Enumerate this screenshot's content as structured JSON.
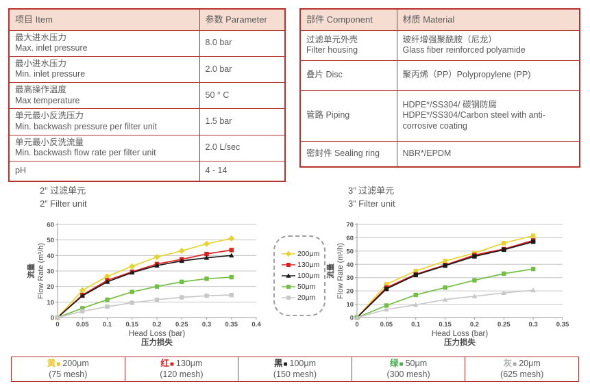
{
  "tables": {
    "specs": {
      "headers": [
        "项目 Item",
        "参数 Parameter"
      ],
      "rows": [
        {
          "item_zh": "最大进水压力",
          "item_en": "Max. inlet pressure",
          "value": "8.0 bar"
        },
        {
          "item_zh": "最小进水压力",
          "item_en": "Min. inlet pressure",
          "value": "2.0 bar"
        },
        {
          "item_zh": "最高操作温度",
          "item_en": "Max temperature",
          "value": "50 ° C"
        },
        {
          "item_zh": "单元最小反洗压力",
          "item_en": "Min. backwash pressure per filter unit",
          "value": "1.5 bar"
        },
        {
          "item_zh": "单元最小反洗流量",
          "item_en": "Min. backwash flow rate per filter unit",
          "value": "2.0 L/sec"
        },
        {
          "item_zh": "pH",
          "item_en": "",
          "value": "4 - 14"
        }
      ]
    },
    "materials": {
      "headers": [
        "部件 Component",
        "材质 Material"
      ],
      "rows": [
        {
          "component_zh": "过滤单元外壳",
          "component_en": "Filter housing",
          "material_zh": "玻纤增强聚酰胺（尼龙）",
          "material_en": "Glass fiber reinforced polyamide"
        },
        {
          "component_zh": "叠片 Disc",
          "component_en": "",
          "material_zh": "聚丙烯（PP）Polypropylene (PP)",
          "material_en": ""
        },
        {
          "component_zh": "管路 Piping",
          "component_en": "",
          "material_zh": "HDPE*/SS304/ 碳钢防腐",
          "material_en": "HDPE*/SS304/Carbon steel with anti-corrosive coating"
        },
        {
          "component_zh": "密封件 Sealing ring",
          "component_en": "",
          "material_zh": "NBR*/EPDM",
          "material_en": ""
        }
      ]
    }
  },
  "chart_data": [
    {
      "type": "line",
      "title_zh": "2” 过滤单元",
      "title_en": "2” Filter unit",
      "xlabel": "Head Loss (bar)",
      "xlabel_zh": "压力损失",
      "ylabel_zh": "流量",
      "ylabel": "Flow Rate (m³/h)",
      "xlim": [
        0,
        0.4
      ],
      "ylim": [
        0,
        60
      ],
      "xticks": [
        0,
        0.05,
        0.1,
        0.15,
        0.2,
        0.25,
        0.3,
        0.35,
        0.4
      ],
      "yticks": [
        0,
        10,
        20,
        30,
        40,
        50,
        60
      ],
      "grid": true,
      "x": [
        0,
        0.05,
        0.1,
        0.15,
        0.2,
        0.25,
        0.3,
        0.35
      ],
      "series": [
        {
          "name": "200μm",
          "color": "#e6d42e",
          "marker": "diamond",
          "values": [
            0,
            17.5,
            26.5,
            33,
            39,
            43,
            47.5,
            51
          ]
        },
        {
          "name": "130μm",
          "color": "#dd2020",
          "marker": "square",
          "values": [
            0,
            14.5,
            24,
            29.5,
            34.5,
            37.5,
            41,
            43.5
          ]
        },
        {
          "name": "100μm",
          "color": "#1a1a1a",
          "marker": "triangle",
          "values": [
            0,
            14,
            23,
            29,
            33.5,
            36.5,
            38.5,
            40
          ]
        },
        {
          "name": "50μm",
          "color": "#72bf44",
          "marker": "square",
          "values": [
            0,
            6,
            11.5,
            16.5,
            20,
            23,
            25,
            26
          ]
        },
        {
          "name": "20μm",
          "color": "#c8c8c8",
          "marker": "square",
          "values": [
            0,
            4,
            7,
            9.5,
            11.5,
            13,
            14,
            14.5
          ]
        }
      ]
    },
    {
      "type": "line",
      "title_zh": "3” 过滤单元",
      "title_en": "3” Filter unit",
      "xlabel": "Head Loss (bar)",
      "xlabel_zh": "压力损失",
      "ylabel_zh": "流量",
      "ylabel": "Flow Rate (m³/h)",
      "xlim": [
        0,
        0.35
      ],
      "ylim": [
        0,
        70
      ],
      "xticks": [
        0,
        0.05,
        0.1,
        0.15,
        0.2,
        0.25,
        0.3,
        0.35
      ],
      "yticks": [
        0,
        10,
        20,
        30,
        40,
        50,
        60,
        70
      ],
      "grid": true,
      "x": [
        0,
        0.05,
        0.1,
        0.15,
        0.2,
        0.25,
        0.3
      ],
      "series": [
        {
          "name": "200μm",
          "color": "#e6d42e",
          "marker": "square",
          "values": [
            0,
            25,
            35,
            42.5,
            48.5,
            56,
            61.5
          ]
        },
        {
          "name": "130μm",
          "color": "#dd2020",
          "marker": "square",
          "values": [
            0,
            22.5,
            32.5,
            39.5,
            47,
            51.5,
            58
          ]
        },
        {
          "name": "100μm",
          "color": "#1a1a1a",
          "marker": "square",
          "values": [
            0,
            21.5,
            32,
            39,
            46,
            51,
            57
          ]
        },
        {
          "name": "50μm",
          "color": "#72bf44",
          "marker": "square",
          "values": [
            0,
            9,
            17,
            22.5,
            28,
            33,
            36.5
          ]
        },
        {
          "name": "20μm",
          "color": "#c8c8c8",
          "marker": "triangle",
          "values": [
            0,
            6,
            9.5,
            13.5,
            16,
            18.5,
            20.5
          ]
        }
      ]
    }
  ],
  "mid_legend": {
    "items": [
      {
        "label": "200μm",
        "color": "#e6d42e",
        "marker": "diamond"
      },
      {
        "label": "130μm",
        "color": "#dd2020",
        "marker": "square"
      },
      {
        "label": "100μm",
        "color": "#1a1a1a",
        "marker": "triangle"
      },
      {
        "label": "50μm",
        "color": "#72bf44",
        "marker": "square"
      },
      {
        "label": "20μm",
        "color": "#c8c8c8",
        "marker": "square"
      }
    ]
  },
  "bottom_legend": {
    "items": [
      {
        "cn": "黄",
        "cn_color": "#eec52d",
        "sq_color": "#f0c320",
        "label": "200μm",
        "mesh": "(75 mesh)"
      },
      {
        "cn": "红",
        "cn_color": "#dd2020",
        "sq_color": "#dd2020",
        "label": "130μm",
        "mesh": "(120 mesh)"
      },
      {
        "cn": "黑",
        "cn_color": "#3a3a3a",
        "sq_color": "#1a1a1a",
        "label": "100μm",
        "mesh": "(150 mesh)"
      },
      {
        "cn": "绿",
        "cn_color": "#3fae49",
        "sq_color": "#3fae49",
        "label": "50μm",
        "mesh": "(300 mesh)"
      },
      {
        "cn": "灰",
        "cn_color": "#b0b0b0",
        "sq_color": "#a8a8a8",
        "label": "20μm",
        "mesh": "(625 mesh)"
      }
    ]
  },
  "colors": {
    "table_border": "#b5322f",
    "header_bg": "#f5ddd2",
    "text": "#595959",
    "gridline": "#c6c6c6"
  }
}
